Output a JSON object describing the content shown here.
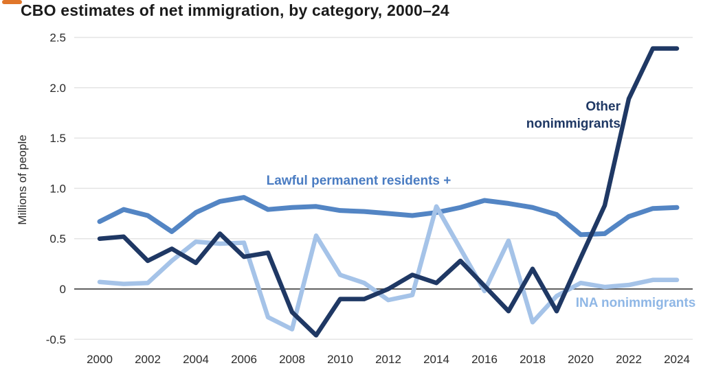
{
  "header": {
    "title": "CBO estimates of net immigration, by category, 2000–24",
    "accent_color": "#e0762a"
  },
  "chart_data": {
    "type": "line",
    "title": "CBO estimates of net immigration, by category, 2000–24",
    "ylabel": "Millions of people",
    "ylim": [
      -0.5,
      2.5
    ],
    "grid": "horizontal",
    "legend_position": "inline-annotations",
    "y_ticks": [
      {
        "value": 2.5,
        "label": "2.5"
      },
      {
        "value": 2.0,
        "label": "2.0"
      },
      {
        "value": 1.5,
        "label": "1.5"
      },
      {
        "value": 1.0,
        "label": "1.0"
      },
      {
        "value": 0.5,
        "label": "0.5"
      },
      {
        "value": 0.0,
        "label": "0"
      },
      {
        "value": -0.5,
        "label": "-0.5"
      }
    ],
    "x": [
      2000,
      2001,
      2002,
      2003,
      2004,
      2005,
      2006,
      2007,
      2008,
      2009,
      2010,
      2011,
      2012,
      2013,
      2014,
      2015,
      2016,
      2017,
      2018,
      2019,
      2020,
      2021,
      2022,
      2023,
      2024
    ],
    "x_tick_years": [
      2000,
      2002,
      2004,
      2006,
      2008,
      2010,
      2012,
      2014,
      2016,
      2018,
      2020,
      2022,
      2024
    ],
    "series": [
      {
        "id": "lpr",
        "name": "Lawful permanent residents +",
        "color": "#5385c4",
        "stroke_width": 7,
        "values": [
          0.67,
          0.79,
          0.73,
          0.57,
          0.76,
          0.87,
          0.91,
          0.79,
          0.81,
          0.82,
          0.78,
          0.77,
          0.75,
          0.73,
          0.76,
          0.81,
          0.88,
          0.85,
          0.81,
          0.74,
          0.54,
          0.55,
          0.72,
          0.8,
          0.81
        ],
        "label": {
          "lines": [
            "Lawful permanent residents +"
          ],
          "x": 522,
          "y": 269,
          "anchor": "middle",
          "color": "#4a7cc2",
          "line_height": 25
        }
      },
      {
        "id": "ina",
        "name": "INA nonimmigrants",
        "color": "#a5c3e8",
        "stroke_width": 6.5,
        "values": [
          0.07,
          0.05,
          0.06,
          0.28,
          0.47,
          0.45,
          0.46,
          -0.28,
          -0.4,
          0.53,
          0.14,
          0.06,
          -0.11,
          -0.06,
          0.82,
          0.4,
          -0.02,
          0.48,
          -0.33,
          -0.07,
          0.06,
          0.02,
          0.04,
          0.09,
          0.09
        ],
        "label": {
          "lines": [
            "INA nonimmigrants"
          ],
          "x": 925,
          "y": 447,
          "anchor": "middle",
          "color": "#8fb7e6",
          "line_height": 25
        }
      },
      {
        "id": "other",
        "name": "Other nonimmigrants",
        "color": "#1f3864",
        "stroke_width": 6.5,
        "values": [
          0.5,
          0.52,
          0.28,
          0.4,
          0.26,
          0.55,
          0.32,
          0.36,
          -0.23,
          -0.46,
          -0.1,
          -0.1,
          0.0,
          0.14,
          0.06,
          0.28,
          0.03,
          -0.22,
          0.2,
          -0.22,
          0.31,
          0.83,
          1.89,
          2.39,
          2.39
        ],
        "label": {
          "lines": [
            "Other",
            "nonimmigrants"
          ],
          "x": 903,
          "y": 161,
          "anchor": "end",
          "color": "#1f3864",
          "line_height": 25
        }
      }
    ],
    "axis_style": {
      "grid_color": "#e4e4e4",
      "zero_line_color": "#4a4a4a",
      "plot_x_start": 108,
      "plot_x_end": 1008
    }
  }
}
